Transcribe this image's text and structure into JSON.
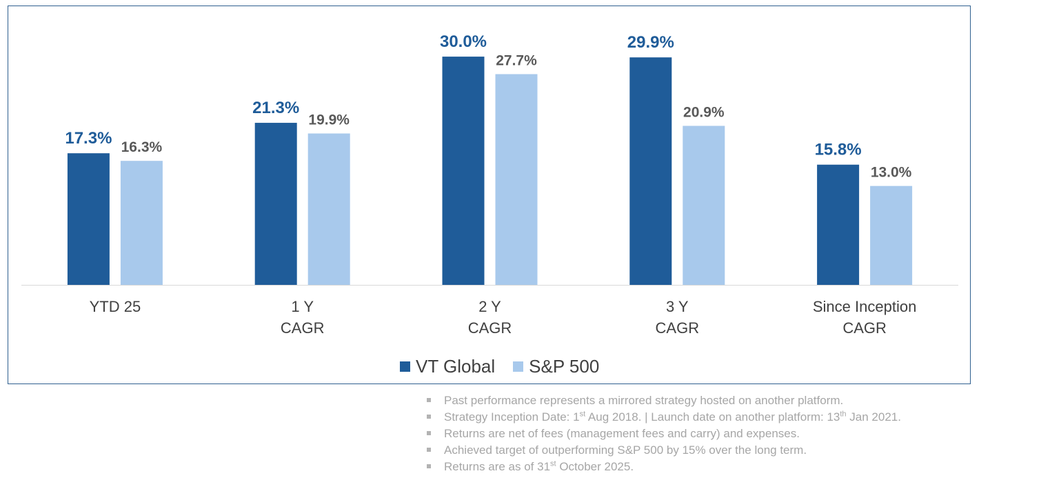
{
  "chart_data": {
    "type": "bar",
    "categories": [
      [
        "YTD 25"
      ],
      [
        "1 Y",
        "CAGR"
      ],
      [
        "2 Y",
        "CAGR"
      ],
      [
        "3 Y",
        "CAGR"
      ],
      [
        "Since Inception",
        "CAGR"
      ]
    ],
    "series": [
      {
        "name": "VT Global",
        "color": "#1f5c99",
        "label_color": "#1f5c99",
        "values": [
          17.3,
          21.3,
          30.0,
          29.9,
          15.8
        ],
        "labels": [
          "17.3%",
          "21.3%",
          "30.0%",
          "29.9%",
          "15.8%"
        ]
      },
      {
        "name": "S&P 500",
        "color": "#a8c9ec",
        "label_color": "#595959",
        "values": [
          16.3,
          19.9,
          27.7,
          20.9,
          13.0
        ],
        "labels": [
          "16.3%",
          "19.9%",
          "27.7%",
          "20.9%",
          "13.0%"
        ]
      }
    ],
    "ylim": [
      0,
      30
    ],
    "grid": false,
    "legend": "bottom-center",
    "title": "",
    "xlabel": "",
    "ylabel": ""
  },
  "notes": [
    {
      "parts": [
        {
          "t": "Past performance represents a mirrored strategy hosted on another platform."
        }
      ]
    },
    {
      "parts": [
        {
          "t": "Strategy Inception Date: 1"
        },
        {
          "t": "st",
          "sup": true
        },
        {
          "t": " Aug 2018. | Launch date on another platform: 13"
        },
        {
          "t": "th",
          "sup": true
        },
        {
          "t": " Jan 2021."
        }
      ]
    },
    {
      "parts": [
        {
          "t": "Returns are net of fees (management fees and carry) and expenses."
        }
      ]
    },
    {
      "parts": [
        {
          "t": "Achieved target of outperforming S&P 500 by 15% over the long term."
        }
      ]
    },
    {
      "parts": [
        {
          "t": "Returns are as of 31"
        },
        {
          "t": "st",
          "sup": true
        },
        {
          "t": " October 2025."
        }
      ]
    }
  ]
}
